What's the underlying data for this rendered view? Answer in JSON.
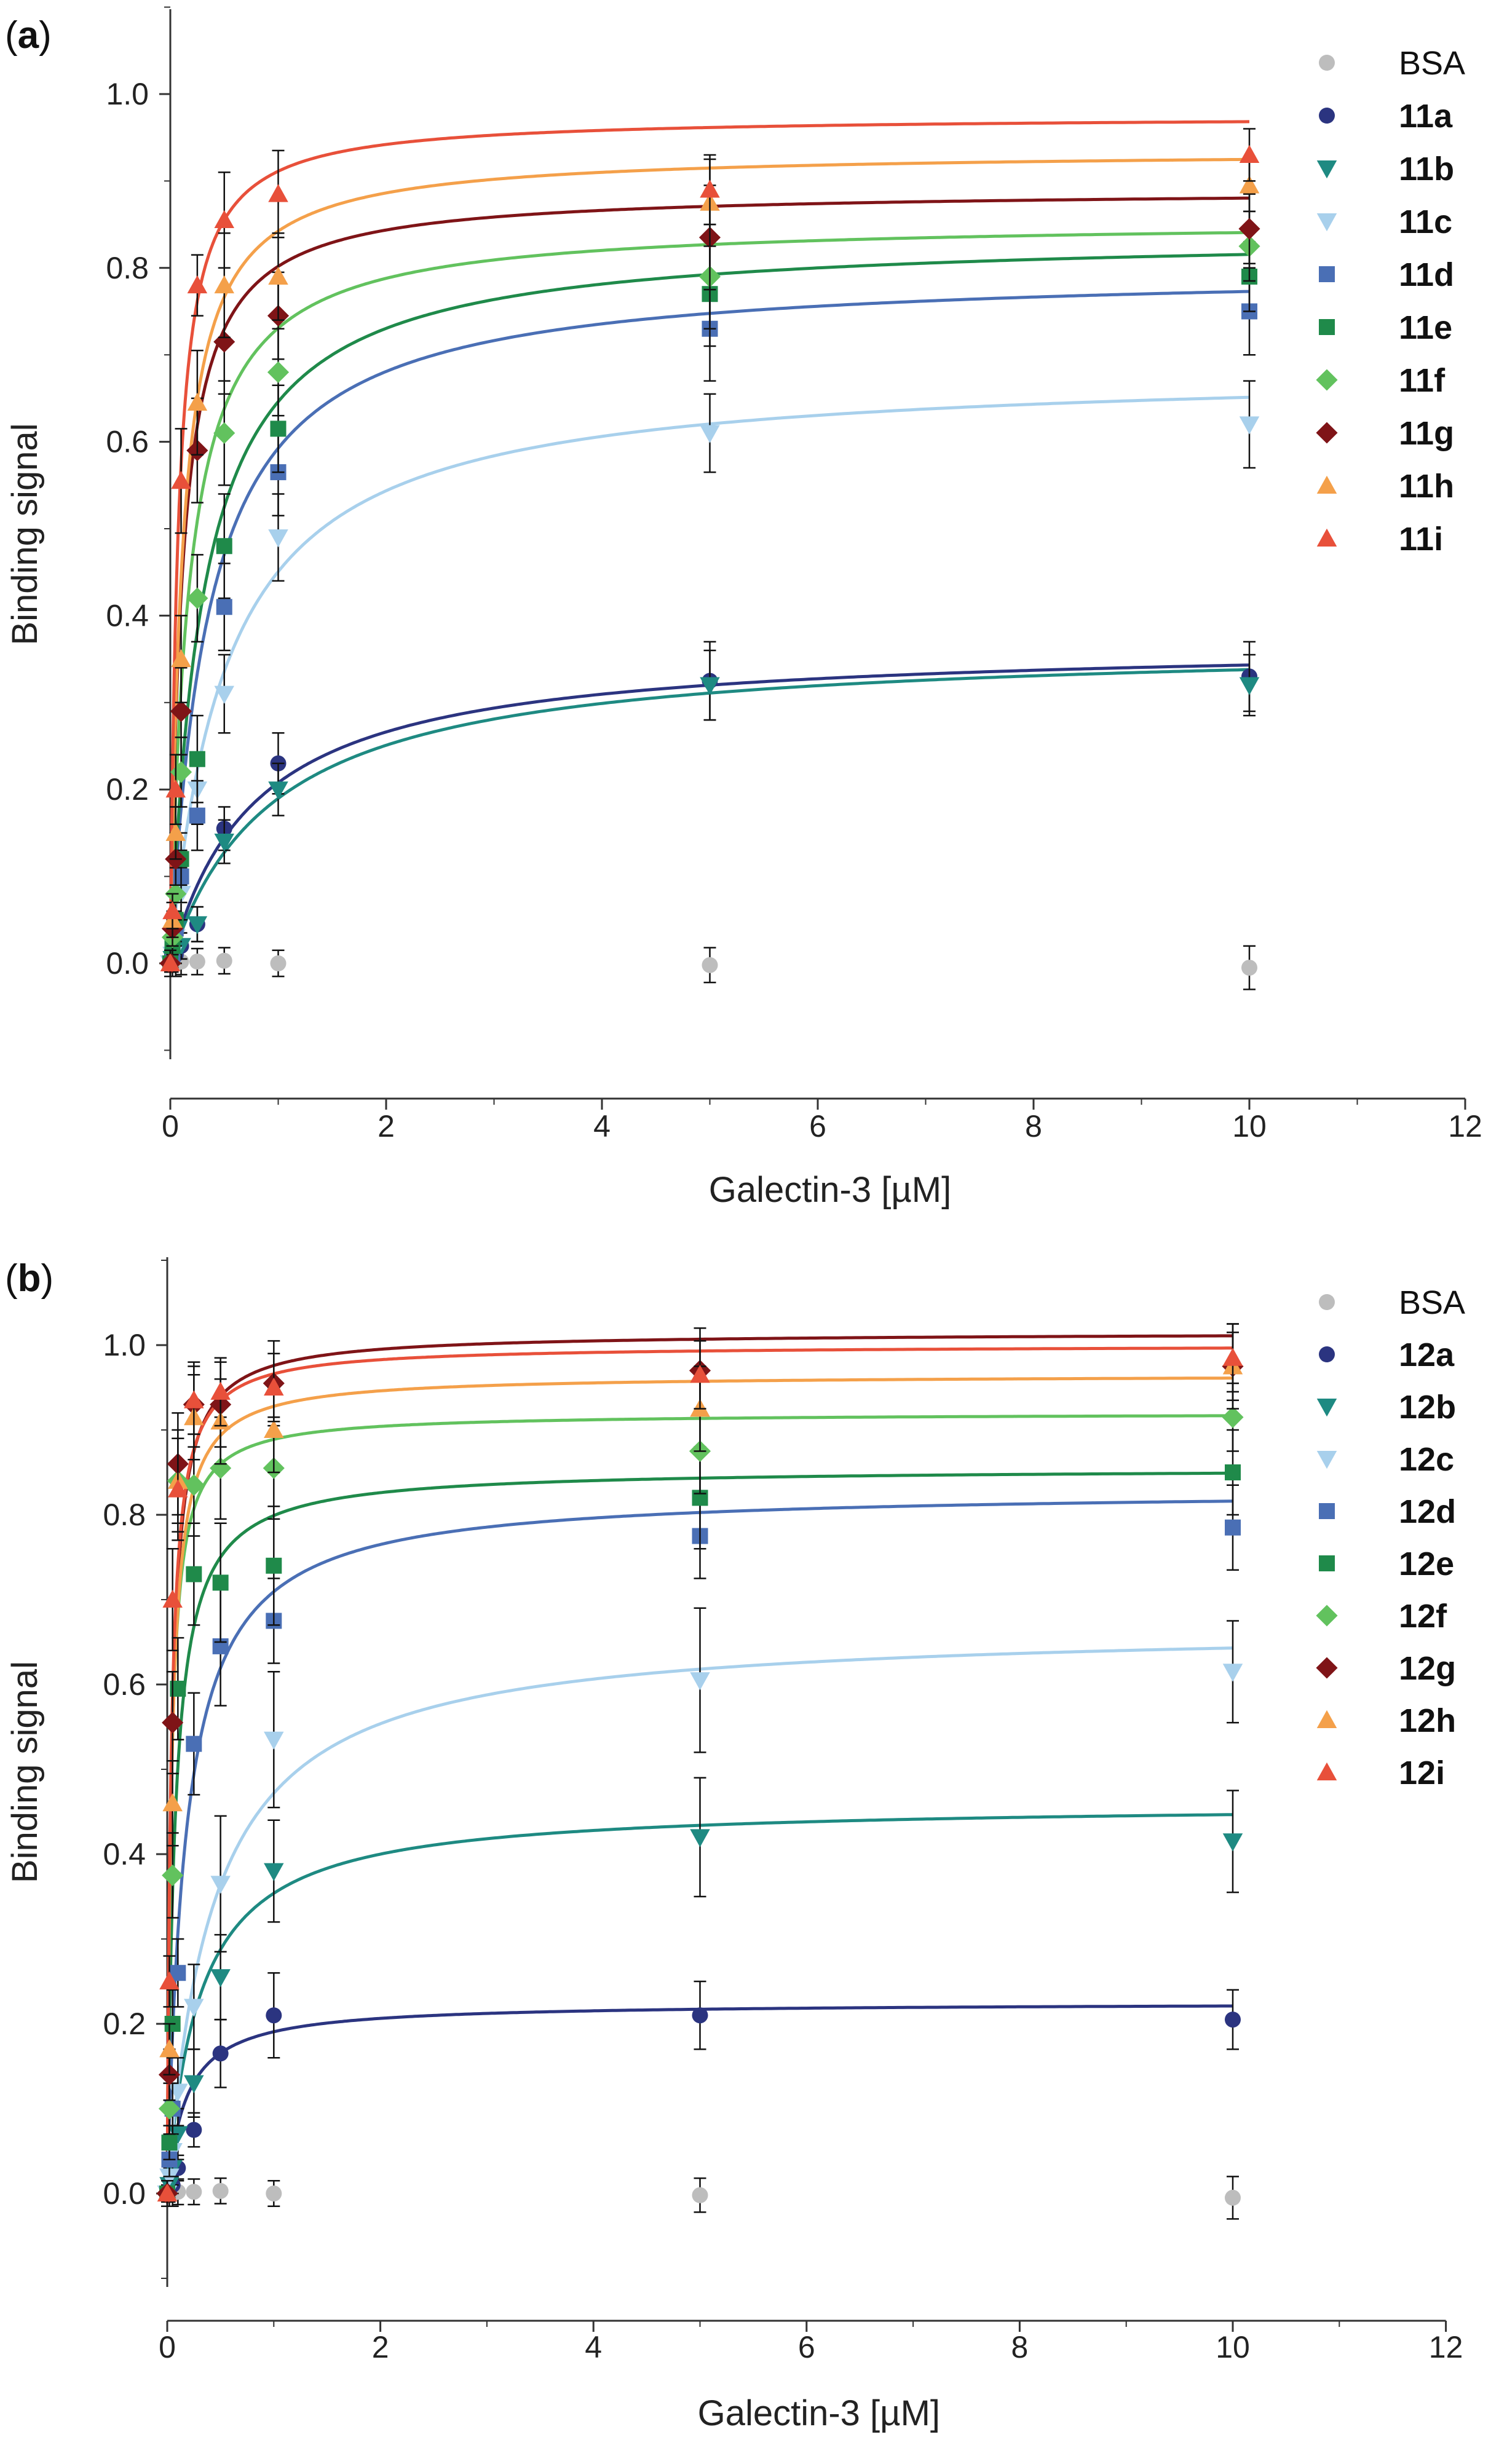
{
  "colors": {
    "BSA": "#bdbdbd",
    "a": "#2b3480",
    "b": "#1e8a82",
    "c": "#a8d0ec",
    "d": "#4a6fb5",
    "e": "#1f8a4a",
    "f": "#62c25e",
    "g": "#7f1417",
    "h": "#f4a04a",
    "i": "#e8503a"
  },
  "chart_data": [
    {
      "type": "scatter",
      "panel_label": "a",
      "xlabel": "Galectin-3 [µM]",
      "ylabel": "Binding signal",
      "xlim": [
        0,
        12
      ],
      "ylim": [
        -0.11,
        1.1
      ],
      "xticks": [
        "0",
        "2",
        "4",
        "6",
        "8",
        "10",
        "12"
      ],
      "yticks": [
        "0.0",
        "0.2",
        "0.4",
        "0.6",
        "0.8",
        "1.0"
      ],
      "legend_position": "top-right",
      "x": [
        0,
        0.02,
        0.05,
        0.1,
        0.25,
        0.5,
        1,
        5,
        10
      ],
      "series": [
        {
          "name": "BSA",
          "key": "BSA",
          "marker": "circle",
          "fit": null,
          "values": [
            0,
            0,
            0,
            0.002,
            0.002,
            0.003,
            0.0,
            -0.002,
            -0.005
          ],
          "errors": [
            0.015,
            0.015,
            0.015,
            0.015,
            0.015,
            0.015,
            0.015,
            0.02,
            0.025
          ]
        },
        {
          "name": "11a",
          "key": "a",
          "marker": "circle",
          "fit": {
            "bmax": 0.37,
            "kd": 0.78
          },
          "values": [
            0,
            0.005,
            0.01,
            0.02,
            0.045,
            0.155,
            0.23,
            0.325,
            0.33
          ],
          "errors": [
            0.01,
            0.01,
            0.01,
            0.015,
            0.02,
            0.025,
            0.035,
            0.045,
            0.04
          ]
        },
        {
          "name": "11b",
          "key": "b",
          "marker": "triangle-down",
          "fit": {
            "bmax": 0.37,
            "kd": 0.95
          },
          "values": [
            0,
            0.005,
            0.01,
            0.02,
            0.045,
            0.14,
            0.2,
            0.32,
            0.32
          ],
          "errors": [
            0.01,
            0.01,
            0.01,
            0.015,
            0.02,
            0.025,
            0.03,
            0.04,
            0.035
          ]
        },
        {
          "name": "11c",
          "key": "c",
          "marker": "triangle-down",
          "fit": {
            "bmax": 0.685,
            "kd": 0.52
          },
          "values": [
            0,
            0.01,
            0.03,
            0.08,
            0.2,
            0.31,
            0.49,
            0.61,
            0.62
          ],
          "errors": [
            0.015,
            0.02,
            0.02,
            0.03,
            0.04,
            0.045,
            0.05,
            0.045,
            0.05
          ]
        },
        {
          "name": "11d",
          "key": "d",
          "marker": "square",
          "fit": {
            "bmax": 0.8,
            "kd": 0.35
          },
          "values": [
            0,
            0.01,
            0.04,
            0.1,
            0.17,
            0.41,
            0.565,
            0.73,
            0.75
          ],
          "errors": [
            0.015,
            0.02,
            0.02,
            0.03,
            0.04,
            0.05,
            0.05,
            0.06,
            0.05
          ]
        },
        {
          "name": "11e",
          "key": "e",
          "marker": "square",
          "fit": {
            "bmax": 0.84,
            "kd": 0.3
          },
          "values": [
            0,
            0.02,
            0.05,
            0.12,
            0.235,
            0.48,
            0.615,
            0.77,
            0.79
          ],
          "errors": [
            0.015,
            0.02,
            0.025,
            0.03,
            0.05,
            0.06,
            0.05,
            0.06,
            0.04
          ]
        },
        {
          "name": "11f",
          "key": "f",
          "marker": "diamond",
          "fit": {
            "bmax": 0.855,
            "kd": 0.17
          },
          "values": [
            0,
            0.03,
            0.08,
            0.22,
            0.42,
            0.61,
            0.68,
            0.79,
            0.825
          ],
          "errors": [
            0.015,
            0.02,
            0.03,
            0.04,
            0.05,
            0.06,
            0.05,
            0.06,
            0.04
          ]
        },
        {
          "name": "11g",
          "key": "g",
          "marker": "diamond",
          "fit": {
            "bmax": 0.89,
            "kd": 0.11
          },
          "values": [
            0,
            0.04,
            0.12,
            0.29,
            0.59,
            0.715,
            0.745,
            0.835,
            0.845
          ],
          "errors": [
            0.015,
            0.02,
            0.03,
            0.05,
            0.06,
            0.06,
            0.05,
            0.06,
            0.04
          ]
        },
        {
          "name": "11h",
          "key": "h",
          "marker": "triangle-up",
          "fit": {
            "bmax": 0.935,
            "kd": 0.11
          },
          "values": [
            0,
            0.05,
            0.15,
            0.35,
            0.645,
            0.78,
            0.79,
            0.875,
            0.895
          ],
          "errors": [
            0.015,
            0.02,
            0.03,
            0.05,
            0.06,
            0.06,
            0.05,
            0.05,
            0.03
          ]
        },
        {
          "name": "11i",
          "key": "i",
          "marker": "triangle-up",
          "fit": {
            "bmax": 0.975,
            "kd": 0.07
          },
          "values": [
            0,
            0.06,
            0.2,
            0.555,
            0.78,
            0.855,
            0.885,
            0.89,
            0.93
          ],
          "errors": [
            0.015,
            0.02,
            0.04,
            0.06,
            0.035,
            0.055,
            0.05,
            0.04,
            0.03
          ]
        }
      ]
    },
    {
      "type": "scatter",
      "panel_label": "b",
      "xlabel": "Galectin-3 [µM]",
      "ylabel": "Binding signal",
      "xlim": [
        0,
        12
      ],
      "ylim": [
        -0.11,
        1.1
      ],
      "xticks": [
        "0",
        "2",
        "4",
        "6",
        "8",
        "10",
        "12"
      ],
      "yticks": [
        "0.0",
        "0.2",
        "0.4",
        "0.6",
        "0.8",
        "1.0"
      ],
      "legend_position": "top-right",
      "x": [
        0,
        0.02,
        0.05,
        0.1,
        0.25,
        0.5,
        1,
        5,
        10
      ],
      "series": [
        {
          "name": "BSA",
          "key": "BSA",
          "marker": "circle",
          "fit": null,
          "values": [
            0,
            0,
            0,
            0.002,
            0.002,
            0.003,
            0.0,
            -0.002,
            -0.005
          ],
          "errors": [
            0.015,
            0.015,
            0.015,
            0.015,
            0.015,
            0.015,
            0.015,
            0.02,
            0.025
          ]
        },
        {
          "name": "12a",
          "key": "a",
          "marker": "circle",
          "fit": {
            "bmax": 0.225,
            "kd": 0.18
          },
          "values": [
            0,
            0.005,
            0.01,
            0.03,
            0.075,
            0.165,
            0.21,
            0.21,
            0.205
          ],
          "errors": [
            0.01,
            0.01,
            0.01,
            0.015,
            0.02,
            0.04,
            0.05,
            0.04,
            0.035
          ]
        },
        {
          "name": "12b",
          "key": "b",
          "marker": "triangle-down",
          "fit": {
            "bmax": 0.46,
            "kd": 0.3
          },
          "values": [
            0,
            0.01,
            0.03,
            0.07,
            0.13,
            0.255,
            0.38,
            0.42,
            0.415
          ],
          "errors": [
            0.015,
            0.02,
            0.02,
            0.03,
            0.04,
            0.05,
            0.06,
            0.07,
            0.06
          ]
        },
        {
          "name": "12c",
          "key": "c",
          "marker": "triangle-down",
          "fit": {
            "bmax": 0.67,
            "kd": 0.42
          },
          "values": [
            0,
            0.02,
            0.05,
            0.12,
            0.22,
            0.365,
            0.535,
            0.605,
            0.615
          ],
          "errors": [
            0.015,
            0.02,
            0.03,
            0.04,
            0.05,
            0.08,
            0.08,
            0.085,
            0.06
          ]
        },
        {
          "name": "12d",
          "key": "d",
          "marker": "square",
          "fit": {
            "bmax": 0.83,
            "kd": 0.17
          },
          "values": [
            0,
            0.04,
            0.1,
            0.26,
            0.53,
            0.645,
            0.675,
            0.775,
            0.785
          ],
          "errors": [
            0.015,
            0.02,
            0.03,
            0.04,
            0.06,
            0.07,
            0.05,
            0.05,
            0.05
          ]
        },
        {
          "name": "12e",
          "key": "e",
          "marker": "square",
          "fit": {
            "bmax": 0.855,
            "kd": 0.07
          },
          "values": [
            0,
            0.06,
            0.2,
            0.595,
            0.73,
            0.72,
            0.74,
            0.82,
            0.85
          ],
          "errors": [
            0.015,
            0.02,
            0.04,
            0.06,
            0.06,
            0.07,
            0.07,
            0.06,
            0.05
          ]
        },
        {
          "name": "12f",
          "key": "f",
          "marker": "diamond",
          "fit": {
            "bmax": 0.92,
            "kd": 0.035
          },
          "values": [
            0,
            0.1,
            0.375,
            0.84,
            0.835,
            0.855,
            0.855,
            0.875,
            0.915
          ],
          "errors": [
            0.015,
            0.03,
            0.05,
            0.05,
            0.06,
            0.06,
            0.06,
            0.05,
            0.04
          ]
        },
        {
          "name": "12g",
          "key": "g",
          "marker": "diamond",
          "fit": {
            "bmax": 1.015,
            "kd": 0.04
          },
          "values": [
            0,
            0.14,
            0.555,
            0.86,
            0.93,
            0.93,
            0.955,
            0.97,
            0.975
          ],
          "errors": [
            0.015,
            0.03,
            0.06,
            0.06,
            0.05,
            0.05,
            0.05,
            0.05,
            0.05
          ]
        },
        {
          "name": "12h",
          "key": "h",
          "marker": "triangle-up",
          "fit": {
            "bmax": 0.965,
            "kd": 0.04
          },
          "values": [
            0,
            0.17,
            0.46,
            0.84,
            0.915,
            0.91,
            0.9,
            0.925,
            0.975
          ],
          "errors": [
            0.015,
            0.03,
            0.05,
            0.06,
            0.05,
            0.05,
            0.05,
            0.05,
            0.04
          ]
        },
        {
          "name": "12i",
          "key": "i",
          "marker": "triangle-up",
          "fit": {
            "bmax": 1.0,
            "kd": 0.035
          },
          "values": [
            0,
            0.25,
            0.7,
            0.83,
            0.935,
            0.945,
            0.95,
            0.965,
            0.985
          ],
          "errors": [
            0.015,
            0.03,
            0.06,
            0.06,
            0.04,
            0.04,
            0.04,
            0.04,
            0.04
          ]
        }
      ]
    }
  ]
}
